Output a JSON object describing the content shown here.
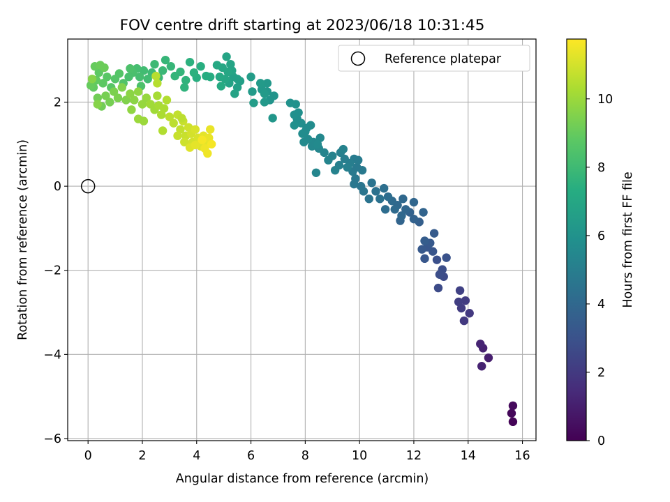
{
  "chart_data": {
    "type": "scatter",
    "title": "FOV centre drift starting at 2023/06/18 10:31:45",
    "xlabel": "Angular distance from reference (arcmin)",
    "ylabel": "Rotation from reference (arcmin)",
    "xlim": [
      -0.75,
      16.5
    ],
    "ylim": [
      -6.05,
      3.5
    ],
    "xticks": [
      0,
      2,
      4,
      6,
      8,
      10,
      12,
      14,
      16
    ],
    "xtick_labels": [
      "0",
      "2",
      "4",
      "6",
      "8",
      "10",
      "12",
      "14",
      "16"
    ],
    "yticks": [
      -6,
      -4,
      -2,
      0,
      2
    ],
    "ytick_labels": [
      "−6",
      "−4",
      "−2",
      "0",
      "2"
    ],
    "grid": true,
    "legend": {
      "position": "top-right",
      "entries": [
        {
          "label": "Reference platepar",
          "marker": "open-circle"
        }
      ]
    },
    "reference_point": {
      "x": 0,
      "y": 0
    },
    "colorbar": {
      "label": "Hours from first FF file",
      "range": [
        0,
        11.75
      ],
      "ticks": [
        0,
        2,
        4,
        6,
        8,
        10
      ],
      "tick_labels": [
        "0",
        "2",
        "4",
        "6",
        "8",
        "10"
      ],
      "colormap": "viridis"
    },
    "series": [
      {
        "color_by": "hours",
        "points": [
          {
            "x": 15.65,
            "y": -5.6,
            "c": 0.1
          },
          {
            "x": 15.6,
            "y": -5.4,
            "c": 0.2
          },
          {
            "x": 15.65,
            "y": -5.22,
            "c": 0.3
          },
          {
            "x": 14.75,
            "y": -4.08,
            "c": 1.0
          },
          {
            "x": 14.55,
            "y": -3.85,
            "c": 1.1
          },
          {
            "x": 14.45,
            "y": -3.75,
            "c": 1.2
          },
          {
            "x": 14.5,
            "y": -4.28,
            "c": 1.15
          },
          {
            "x": 14.05,
            "y": -3.02,
            "c": 2.0
          },
          {
            "x": 13.85,
            "y": -3.2,
            "c": 2.0
          },
          {
            "x": 13.75,
            "y": -2.9,
            "c": 2.1
          },
          {
            "x": 13.9,
            "y": -2.72,
            "c": 2.1
          },
          {
            "x": 13.65,
            "y": -2.75,
            "c": 2.2
          },
          {
            "x": 13.7,
            "y": -2.48,
            "c": 2.3
          },
          {
            "x": 13.1,
            "y": -2.15,
            "c": 2.7
          },
          {
            "x": 12.9,
            "y": -2.42,
            "c": 2.7
          },
          {
            "x": 13.05,
            "y": -1.98,
            "c": 2.8
          },
          {
            "x": 12.85,
            "y": -1.75,
            "c": 2.9
          },
          {
            "x": 13.2,
            "y": -1.7,
            "c": 3.0
          },
          {
            "x": 12.95,
            "y": -2.1,
            "c": 2.8
          },
          {
            "x": 12.7,
            "y": -1.55,
            "c": 3.1
          },
          {
            "x": 12.5,
            "y": -1.45,
            "c": 3.2
          },
          {
            "x": 12.3,
            "y": -1.5,
            "c": 3.3
          },
          {
            "x": 12.4,
            "y": -1.72,
            "c": 3.2
          },
          {
            "x": 12.6,
            "y": -1.35,
            "c": 3.3
          },
          {
            "x": 12.75,
            "y": -1.12,
            "c": 3.4
          },
          {
            "x": 12.4,
            "y": -1.3,
            "c": 3.5
          },
          {
            "x": 12.2,
            "y": -0.85,
            "c": 3.6
          },
          {
            "x": 12.0,
            "y": -0.78,
            "c": 3.7
          },
          {
            "x": 11.85,
            "y": -0.62,
            "c": 3.7
          },
          {
            "x": 12.35,
            "y": -0.62,
            "c": 3.8
          },
          {
            "x": 12.0,
            "y": -0.38,
            "c": 3.9
          },
          {
            "x": 11.7,
            "y": -0.55,
            "c": 3.9
          },
          {
            "x": 11.5,
            "y": -0.82,
            "c": 3.8
          },
          {
            "x": 11.4,
            "y": -0.45,
            "c": 4.0
          },
          {
            "x": 11.6,
            "y": -0.3,
            "c": 4.0
          },
          {
            "x": 11.3,
            "y": -0.55,
            "c": 4.1
          },
          {
            "x": 11.2,
            "y": -0.35,
            "c": 4.1
          },
          {
            "x": 11.05,
            "y": -0.25,
            "c": 4.2
          },
          {
            "x": 10.95,
            "y": -0.55,
            "c": 4.2
          },
          {
            "x": 11.55,
            "y": -0.7,
            "c": 4.0
          },
          {
            "x": 10.9,
            "y": -0.05,
            "c": 4.3
          },
          {
            "x": 10.75,
            "y": -0.3,
            "c": 4.4
          },
          {
            "x": 10.6,
            "y": -0.12,
            "c": 4.4
          },
          {
            "x": 10.45,
            "y": 0.08,
            "c": 4.5
          },
          {
            "x": 10.35,
            "y": -0.3,
            "c": 4.5
          },
          {
            "x": 10.15,
            "y": -0.12,
            "c": 4.6
          },
          {
            "x": 10.05,
            "y": 0.0,
            "c": 4.6
          },
          {
            "x": 9.85,
            "y": 0.18,
            "c": 4.7
          },
          {
            "x": 9.8,
            "y": 0.05,
            "c": 4.7
          },
          {
            "x": 10.1,
            "y": 0.38,
            "c": 4.8
          },
          {
            "x": 9.9,
            "y": 0.45,
            "c": 4.8
          },
          {
            "x": 9.75,
            "y": 0.35,
            "c": 4.8
          },
          {
            "x": 9.95,
            "y": 0.62,
            "c": 4.9
          },
          {
            "x": 9.8,
            "y": 0.65,
            "c": 4.9
          },
          {
            "x": 9.65,
            "y": 0.55,
            "c": 5.0
          },
          {
            "x": 9.45,
            "y": 0.65,
            "c": 5.0
          },
          {
            "x": 9.3,
            "y": 0.8,
            "c": 5.1
          },
          {
            "x": 9.55,
            "y": 0.45,
            "c": 5.1
          },
          {
            "x": 9.4,
            "y": 0.88,
            "c": 5.2
          },
          {
            "x": 9.25,
            "y": 0.5,
            "c": 5.1
          },
          {
            "x": 9.0,
            "y": 0.72,
            "c": 5.2
          },
          {
            "x": 9.1,
            "y": 0.38,
            "c": 5.2
          },
          {
            "x": 8.85,
            "y": 0.62,
            "c": 5.3
          },
          {
            "x": 8.7,
            "y": 0.8,
            "c": 5.3
          },
          {
            "x": 8.4,
            "y": 0.32,
            "c": 5.4
          },
          {
            "x": 8.5,
            "y": 0.9,
            "c": 5.4
          },
          {
            "x": 8.3,
            "y": 1.05,
            "c": 5.5
          },
          {
            "x": 8.55,
            "y": 1.15,
            "c": 5.5
          },
          {
            "x": 8.25,
            "y": 0.95,
            "c": 5.5
          },
          {
            "x": 8.1,
            "y": 1.12,
            "c": 5.6
          },
          {
            "x": 7.95,
            "y": 1.05,
            "c": 5.6
          },
          {
            "x": 8.0,
            "y": 1.3,
            "c": 5.7
          },
          {
            "x": 8.2,
            "y": 1.45,
            "c": 5.7
          },
          {
            "x": 7.85,
            "y": 1.5,
            "c": 5.8
          },
          {
            "x": 7.7,
            "y": 1.6,
            "c": 5.8
          },
          {
            "x": 7.9,
            "y": 1.25,
            "c": 5.7
          },
          {
            "x": 8.05,
            "y": 1.38,
            "c": 5.7
          },
          {
            "x": 7.6,
            "y": 1.45,
            "c": 5.9
          },
          {
            "x": 7.75,
            "y": 1.75,
            "c": 5.9
          },
          {
            "x": 7.65,
            "y": 1.95,
            "c": 6.0
          },
          {
            "x": 7.45,
            "y": 1.98,
            "c": 6.0
          },
          {
            "x": 7.6,
            "y": 1.7,
            "c": 5.9
          },
          {
            "x": 8.45,
            "y": 1.0,
            "c": 5.6
          },
          {
            "x": 6.85,
            "y": 2.15,
            "c": 6.1
          },
          {
            "x": 6.7,
            "y": 2.05,
            "c": 6.1
          },
          {
            "x": 6.8,
            "y": 1.62,
            "c": 6.2
          },
          {
            "x": 6.6,
            "y": 2.25,
            "c": 6.2
          },
          {
            "x": 6.5,
            "y": 2.0,
            "c": 6.3
          },
          {
            "x": 6.4,
            "y": 2.3,
            "c": 6.3
          },
          {
            "x": 6.6,
            "y": 2.45,
            "c": 6.3
          },
          {
            "x": 6.35,
            "y": 2.45,
            "c": 6.4
          },
          {
            "x": 6.05,
            "y": 2.25,
            "c": 6.4
          },
          {
            "x": 6.0,
            "y": 2.6,
            "c": 6.5
          },
          {
            "x": 6.1,
            "y": 1.98,
            "c": 6.5
          },
          {
            "x": 6.5,
            "y": 2.2,
            "c": 6.4
          },
          {
            "x": 5.6,
            "y": 2.5,
            "c": 6.6
          },
          {
            "x": 5.5,
            "y": 2.35,
            "c": 6.7
          },
          {
            "x": 5.35,
            "y": 2.6,
            "c": 6.7
          },
          {
            "x": 5.4,
            "y": 2.2,
            "c": 6.8
          },
          {
            "x": 5.2,
            "y": 2.45,
            "c": 6.8
          },
          {
            "x": 5.3,
            "y": 2.75,
            "c": 6.9
          },
          {
            "x": 5.1,
            "y": 3.08,
            "c": 6.9
          },
          {
            "x": 5.05,
            "y": 2.55,
            "c": 7.0
          },
          {
            "x": 4.95,
            "y": 2.82,
            "c": 7.0
          },
          {
            "x": 4.85,
            "y": 2.6,
            "c": 7.1
          },
          {
            "x": 4.75,
            "y": 2.88,
            "c": 7.1
          },
          {
            "x": 4.9,
            "y": 2.38,
            "c": 7.2
          },
          {
            "x": 5.15,
            "y": 2.72,
            "c": 7.0
          },
          {
            "x": 5.25,
            "y": 2.9,
            "c": 6.9
          },
          {
            "x": 5.5,
            "y": 2.55,
            "c": 6.7
          },
          {
            "x": 4.5,
            "y": 2.6,
            "c": 7.3
          },
          {
            "x": 4.35,
            "y": 2.62,
            "c": 7.3
          },
          {
            "x": 4.15,
            "y": 2.85,
            "c": 7.4
          },
          {
            "x": 4.0,
            "y": 2.58,
            "c": 7.4
          },
          {
            "x": 3.9,
            "y": 2.7,
            "c": 7.5
          },
          {
            "x": 3.75,
            "y": 2.95,
            "c": 7.5
          },
          {
            "x": 3.6,
            "y": 2.52,
            "c": 7.6
          },
          {
            "x": 3.55,
            "y": 2.35,
            "c": 7.6
          },
          {
            "x": 3.4,
            "y": 2.72,
            "c": 7.7
          },
          {
            "x": 3.2,
            "y": 2.62,
            "c": 7.7
          },
          {
            "x": 3.05,
            "y": 2.85,
            "c": 7.8
          },
          {
            "x": 2.85,
            "y": 3.0,
            "c": 7.8
          },
          {
            "x": 2.75,
            "y": 2.75,
            "c": 7.9
          },
          {
            "x": 2.6,
            "y": 2.58,
            "c": 7.9
          },
          {
            "x": 2.45,
            "y": 2.9,
            "c": 8.0
          },
          {
            "x": 2.35,
            "y": 2.7,
            "c": 8.0
          },
          {
            "x": 2.2,
            "y": 2.55,
            "c": 8.1
          },
          {
            "x": 2.05,
            "y": 2.75,
            "c": 8.1
          },
          {
            "x": 1.9,
            "y": 2.6,
            "c": 8.2
          },
          {
            "x": 1.8,
            "y": 2.8,
            "c": 8.2
          },
          {
            "x": 1.65,
            "y": 2.7,
            "c": 8.3
          },
          {
            "x": 1.5,
            "y": 2.6,
            "c": 8.3
          },
          {
            "x": 1.95,
            "y": 2.38,
            "c": 8.4
          },
          {
            "x": 1.55,
            "y": 2.8,
            "c": 8.4
          },
          {
            "x": 1.3,
            "y": 2.45,
            "c": 8.5
          },
          {
            "x": 1.15,
            "y": 2.68,
            "c": 8.6
          },
          {
            "x": 1.0,
            "y": 2.55,
            "c": 8.6
          },
          {
            "x": 0.85,
            "y": 2.35,
            "c": 8.7
          },
          {
            "x": 0.7,
            "y": 2.6,
            "c": 8.7
          },
          {
            "x": 0.55,
            "y": 2.45,
            "c": 8.8
          },
          {
            "x": 0.4,
            "y": 2.7,
            "c": 8.8
          },
          {
            "x": 0.3,
            "y": 2.52,
            "c": 8.9
          },
          {
            "x": 0.2,
            "y": 2.35,
            "c": 8.9
          },
          {
            "x": 0.1,
            "y": 2.4,
            "c": 9.0
          },
          {
            "x": 0.25,
            "y": 2.85,
            "c": 9.0
          },
          {
            "x": 0.45,
            "y": 2.88,
            "c": 9.1
          },
          {
            "x": 0.6,
            "y": 2.82,
            "c": 9.1
          },
          {
            "x": 0.35,
            "y": 2.1,
            "c": 9.2
          },
          {
            "x": 0.5,
            "y": 1.9,
            "c": 9.2
          },
          {
            "x": 0.65,
            "y": 2.15,
            "c": 9.3
          },
          {
            "x": 0.8,
            "y": 2.0,
            "c": 9.3
          },
          {
            "x": 0.95,
            "y": 2.25,
            "c": 9.4
          },
          {
            "x": 1.1,
            "y": 2.1,
            "c": 9.4
          },
          {
            "x": 1.25,
            "y": 2.35,
            "c": 9.5
          },
          {
            "x": 1.4,
            "y": 2.05,
            "c": 9.5
          },
          {
            "x": 0.35,
            "y": 1.95,
            "c": 9.6
          },
          {
            "x": 0.15,
            "y": 2.55,
            "c": 9.6
          },
          {
            "x": 1.55,
            "y": 2.2,
            "c": 9.7
          },
          {
            "x": 1.7,
            "y": 2.05,
            "c": 9.7
          },
          {
            "x": 1.6,
            "y": 1.82,
            "c": 9.8
          },
          {
            "x": 1.85,
            "y": 2.25,
            "c": 9.8
          },
          {
            "x": 2.0,
            "y": 1.95,
            "c": 9.9
          },
          {
            "x": 2.15,
            "y": 2.1,
            "c": 9.9
          },
          {
            "x": 1.85,
            "y": 1.6,
            "c": 10.0
          },
          {
            "x": 2.05,
            "y": 1.55,
            "c": 10.0
          },
          {
            "x": 2.3,
            "y": 1.95,
            "c": 10.1
          },
          {
            "x": 2.45,
            "y": 1.82,
            "c": 10.1
          },
          {
            "x": 2.55,
            "y": 2.15,
            "c": 10.2
          },
          {
            "x": 2.6,
            "y": 1.92,
            "c": 10.2
          },
          {
            "x": 2.7,
            "y": 1.7,
            "c": 10.3
          },
          {
            "x": 2.8,
            "y": 1.85,
            "c": 10.3
          },
          {
            "x": 2.9,
            "y": 2.05,
            "c": 10.4
          },
          {
            "x": 2.75,
            "y": 1.32,
            "c": 10.4
          },
          {
            "x": 2.55,
            "y": 2.45,
            "c": 10.5
          },
          {
            "x": 2.5,
            "y": 2.62,
            "c": 10.5
          },
          {
            "x": 3.0,
            "y": 1.65,
            "c": 10.6
          },
          {
            "x": 3.15,
            "y": 1.5,
            "c": 10.6
          },
          {
            "x": 3.3,
            "y": 1.7,
            "c": 10.7
          },
          {
            "x": 3.4,
            "y": 1.35,
            "c": 10.7
          },
          {
            "x": 3.5,
            "y": 1.55,
            "c": 10.8
          },
          {
            "x": 3.6,
            "y": 1.2,
            "c": 10.8
          },
          {
            "x": 3.7,
            "y": 1.4,
            "c": 10.9
          },
          {
            "x": 3.55,
            "y": 1.05,
            "c": 10.9
          },
          {
            "x": 3.8,
            "y": 1.25,
            "c": 11.0
          },
          {
            "x": 3.85,
            "y": 1.05,
            "c": 11.0
          },
          {
            "x": 3.95,
            "y": 1.35,
            "c": 11.1
          },
          {
            "x": 4.05,
            "y": 1.15,
            "c": 11.1
          },
          {
            "x": 3.75,
            "y": 0.92,
            "c": 11.2
          },
          {
            "x": 4.15,
            "y": 0.95,
            "c": 11.2
          },
          {
            "x": 4.25,
            "y": 1.2,
            "c": 11.3
          },
          {
            "x": 4.35,
            "y": 1.05,
            "c": 11.3
          },
          {
            "x": 4.45,
            "y": 1.15,
            "c": 11.4
          },
          {
            "x": 4.5,
            "y": 1.35,
            "c": 11.4
          },
          {
            "x": 4.4,
            "y": 0.78,
            "c": 11.5
          },
          {
            "x": 4.3,
            "y": 0.9,
            "c": 11.5
          },
          {
            "x": 4.55,
            "y": 1.0,
            "c": 11.6
          },
          {
            "x": 4.2,
            "y": 1.1,
            "c": 11.6
          },
          {
            "x": 3.3,
            "y": 1.2,
            "c": 10.8
          },
          {
            "x": 3.45,
            "y": 1.62,
            "c": 10.6
          },
          {
            "x": 3.95,
            "y": 0.98,
            "c": 11.3
          }
        ]
      }
    ]
  }
}
